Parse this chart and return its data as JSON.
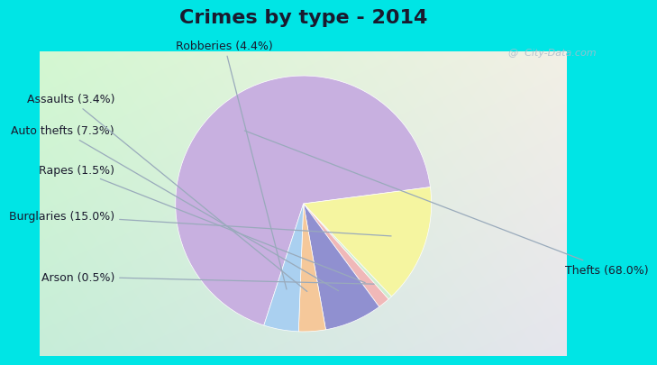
{
  "title": "Crimes by type - 2014",
  "values": [
    68.0,
    15.0,
    0.5,
    1.5,
    7.3,
    3.4,
    4.4
  ],
  "colors": [
    "#c8b0e0",
    "#f5f5a0",
    "#d0edd0",
    "#f0b8b8",
    "#9090d0",
    "#f5c89a",
    "#aad0f0"
  ],
  "label_texts": [
    "Thefts (68.0%)",
    "Burglaries (15.0%)",
    "Arson (0.5%)",
    "Rapes (1.5%)",
    "Auto thefts (7.3%)",
    "Assaults (3.4%)",
    "Robberies (4.4%)"
  ],
  "bg_outer": "#00e5e5",
  "title_fontsize": 16,
  "label_fontsize": 9,
  "startangle": 252,
  "watermark": "@  City-Data.com"
}
